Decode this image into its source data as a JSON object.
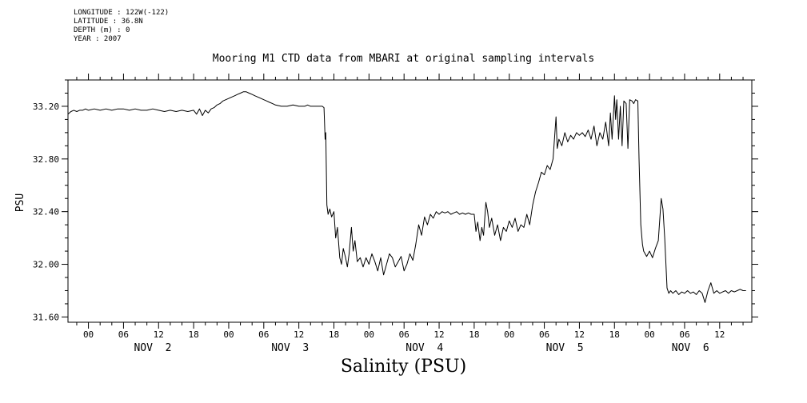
{
  "header": {
    "meta_lines": [
      "LONGITUDE : 122W(-122)",
      "LATITUDE : 36.8N",
      "DEPTH (m) : 0",
      "YEAR : 2007"
    ],
    "title": "Mooring M1 CTD data from MBARI at original sampling intervals"
  },
  "axes": {
    "y_label": "PSU",
    "x_label": "Salinity (PSU)"
  },
  "chart_data": {
    "type": "line",
    "title": "Mooring M1 CTD data from MBARI at original sampling intervals",
    "xlabel": "Salinity (PSU)",
    "ylabel": "PSU",
    "x_unit": "hours since 2007-11-02 00:00",
    "xlim": [
      -3.5,
      113.5
    ],
    "ylim": [
      31.56,
      33.4
    ],
    "y_major_ticks": [
      31.6,
      32.0,
      32.4,
      32.8,
      33.2
    ],
    "y_minor_step": 0.1,
    "x_major_step": 6,
    "x_minor_step": 2,
    "x_hour_label_cycle": [
      "00",
      "06",
      "12",
      "18"
    ],
    "day_labels": [
      {
        "label": "NOV  2",
        "t": 11
      },
      {
        "label": "NOV  3",
        "t": 34.5
      },
      {
        "label": "NOV  4",
        "t": 57.5
      },
      {
        "label": "NOV  5",
        "t": 81.5
      },
      {
        "label": "NOV  6",
        "t": 103
      }
    ],
    "grid": false,
    "legend": false,
    "line_color": "#000000",
    "background": "#ffffff",
    "series": [
      {
        "name": "Salinity (PSU)",
        "points": [
          [
            -3.5,
            33.14
          ],
          [
            -3,
            33.16
          ],
          [
            -2.5,
            33.17
          ],
          [
            -2,
            33.16
          ],
          [
            -1.5,
            33.17
          ],
          [
            -1,
            33.17
          ],
          [
            -0.5,
            33.18
          ],
          [
            0,
            33.17
          ],
          [
            1,
            33.18
          ],
          [
            2,
            33.17
          ],
          [
            3,
            33.18
          ],
          [
            4,
            33.17
          ],
          [
            5,
            33.18
          ],
          [
            6,
            33.18
          ],
          [
            7,
            33.17
          ],
          [
            8,
            33.18
          ],
          [
            9,
            33.17
          ],
          [
            10,
            33.17
          ],
          [
            11,
            33.18
          ],
          [
            12,
            33.17
          ],
          [
            13,
            33.16
          ],
          [
            14,
            33.17
          ],
          [
            15,
            33.16
          ],
          [
            16,
            33.17
          ],
          [
            17,
            33.16
          ],
          [
            18,
            33.17
          ],
          [
            18.5,
            33.14
          ],
          [
            19,
            33.18
          ],
          [
            19.5,
            33.13
          ],
          [
            20,
            33.17
          ],
          [
            20.5,
            33.15
          ],
          [
            21,
            33.18
          ],
          [
            21.5,
            33.19
          ],
          [
            22,
            33.21
          ],
          [
            22.5,
            33.22
          ],
          [
            23,
            33.24
          ],
          [
            23.5,
            33.25
          ],
          [
            24,
            33.26
          ],
          [
            24.5,
            33.27
          ],
          [
            25,
            33.28
          ],
          [
            25.5,
            33.29
          ],
          [
            26,
            33.3
          ],
          [
            26.5,
            33.31
          ],
          [
            27,
            33.31
          ],
          [
            27.5,
            33.3
          ],
          [
            28,
            33.29
          ],
          [
            28.5,
            33.28
          ],
          [
            29,
            33.27
          ],
          [
            29.5,
            33.26
          ],
          [
            30,
            33.25
          ],
          [
            30.5,
            33.24
          ],
          [
            31,
            33.23
          ],
          [
            31.5,
            33.22
          ],
          [
            32,
            33.21
          ],
          [
            33,
            33.2
          ],
          [
            34,
            33.2
          ],
          [
            35,
            33.21
          ],
          [
            36,
            33.2
          ],
          [
            37,
            33.2
          ],
          [
            37.5,
            33.21
          ],
          [
            38,
            33.2
          ],
          [
            39,
            33.2
          ],
          [
            40,
            33.2
          ],
          [
            40.3,
            33.19
          ],
          [
            40.5,
            32.95
          ],
          [
            40.6,
            33.0
          ],
          [
            40.8,
            32.45
          ],
          [
            41,
            32.38
          ],
          [
            41.3,
            32.42
          ],
          [
            41.6,
            32.36
          ],
          [
            42,
            32.4
          ],
          [
            42.3,
            32.2
          ],
          [
            42.6,
            32.28
          ],
          [
            43,
            32.05
          ],
          [
            43.3,
            32.0
          ],
          [
            43.6,
            32.12
          ],
          [
            44,
            32.05
          ],
          [
            44.3,
            31.98
          ],
          [
            44.6,
            32.08
          ],
          [
            45,
            32.28
          ],
          [
            45.3,
            32.1
          ],
          [
            45.6,
            32.18
          ],
          [
            46,
            32.02
          ],
          [
            46.5,
            32.05
          ],
          [
            47,
            31.98
          ],
          [
            47.5,
            32.05
          ],
          [
            48,
            32.0
          ],
          [
            48.5,
            32.08
          ],
          [
            49,
            32.02
          ],
          [
            49.5,
            31.95
          ],
          [
            50,
            32.05
          ],
          [
            50.5,
            31.92
          ],
          [
            51,
            32.0
          ],
          [
            51.5,
            32.08
          ],
          [
            52,
            32.05
          ],
          [
            52.5,
            31.98
          ],
          [
            53,
            32.02
          ],
          [
            53.5,
            32.06
          ],
          [
            54,
            31.95
          ],
          [
            54.5,
            32.0
          ],
          [
            55,
            32.08
          ],
          [
            55.5,
            32.03
          ],
          [
            56,
            32.15
          ],
          [
            56.5,
            32.3
          ],
          [
            57,
            32.22
          ],
          [
            57.5,
            32.36
          ],
          [
            58,
            32.3
          ],
          [
            58.5,
            32.38
          ],
          [
            59,
            32.35
          ],
          [
            59.5,
            32.4
          ],
          [
            60,
            32.38
          ],
          [
            60.5,
            32.4
          ],
          [
            61,
            32.39
          ],
          [
            61.5,
            32.4
          ],
          [
            62,
            32.38
          ],
          [
            62.5,
            32.39
          ],
          [
            63,
            32.4
          ],
          [
            63.5,
            32.38
          ],
          [
            64,
            32.39
          ],
          [
            64.5,
            32.38
          ],
          [
            65,
            32.39
          ],
          [
            65.5,
            32.38
          ],
          [
            66,
            32.38
          ],
          [
            66.3,
            32.25
          ],
          [
            66.6,
            32.32
          ],
          [
            67,
            32.18
          ],
          [
            67.3,
            32.28
          ],
          [
            67.6,
            32.22
          ],
          [
            68,
            32.47
          ],
          [
            68.3,
            32.4
          ],
          [
            68.6,
            32.28
          ],
          [
            69,
            32.35
          ],
          [
            69.5,
            32.22
          ],
          [
            70,
            32.3
          ],
          [
            70.5,
            32.18
          ],
          [
            71,
            32.28
          ],
          [
            71.5,
            32.25
          ],
          [
            72,
            32.33
          ],
          [
            72.5,
            32.28
          ],
          [
            73,
            32.35
          ],
          [
            73.5,
            32.25
          ],
          [
            74,
            32.3
          ],
          [
            74.5,
            32.28
          ],
          [
            75,
            32.38
          ],
          [
            75.5,
            32.3
          ],
          [
            76,
            32.45
          ],
          [
            76.5,
            32.55
          ],
          [
            77,
            32.62
          ],
          [
            77.5,
            32.7
          ],
          [
            78,
            32.68
          ],
          [
            78.5,
            32.75
          ],
          [
            79,
            32.72
          ],
          [
            79.5,
            32.8
          ],
          [
            80,
            33.12
          ],
          [
            80.2,
            32.88
          ],
          [
            80.5,
            32.95
          ],
          [
            81,
            32.9
          ],
          [
            81.5,
            33.0
          ],
          [
            82,
            32.93
          ],
          [
            82.5,
            32.98
          ],
          [
            83,
            32.95
          ],
          [
            83.5,
            33.0
          ],
          [
            84,
            32.98
          ],
          [
            84.5,
            33.0
          ],
          [
            85,
            32.97
          ],
          [
            85.5,
            33.02
          ],
          [
            86,
            32.95
          ],
          [
            86.5,
            33.05
          ],
          [
            87,
            32.9
          ],
          [
            87.5,
            33.0
          ],
          [
            88,
            32.95
          ],
          [
            88.5,
            33.08
          ],
          [
            89,
            32.9
          ],
          [
            89.3,
            33.15
          ],
          [
            89.6,
            32.95
          ],
          [
            90,
            33.28
          ],
          [
            90.2,
            33.1
          ],
          [
            90.4,
            33.25
          ],
          [
            90.7,
            32.95
          ],
          [
            91,
            33.2
          ],
          [
            91.3,
            32.9
          ],
          [
            91.6,
            33.24
          ],
          [
            92,
            33.22
          ],
          [
            92.3,
            32.88
          ],
          [
            92.6,
            33.25
          ],
          [
            93,
            33.24
          ],
          [
            93.3,
            33.22
          ],
          [
            93.6,
            33.25
          ],
          [
            94,
            33.24
          ],
          [
            94.2,
            32.8
          ],
          [
            94.5,
            32.3
          ],
          [
            94.8,
            32.15
          ],
          [
            95,
            32.1
          ],
          [
            95.5,
            32.06
          ],
          [
            96,
            32.1
          ],
          [
            96.5,
            32.05
          ],
          [
            97,
            32.12
          ],
          [
            97.5,
            32.18
          ],
          [
            98,
            32.5
          ],
          [
            98.3,
            32.42
          ],
          [
            98.6,
            32.2
          ],
          [
            99,
            31.82
          ],
          [
            99.3,
            31.78
          ],
          [
            99.6,
            31.8
          ],
          [
            100,
            31.78
          ],
          [
            100.5,
            31.8
          ],
          [
            101,
            31.77
          ],
          [
            101.5,
            31.79
          ],
          [
            102,
            31.78
          ],
          [
            102.5,
            31.8
          ],
          [
            103,
            31.78
          ],
          [
            103.5,
            31.79
          ],
          [
            104,
            31.77
          ],
          [
            104.5,
            31.8
          ],
          [
            105,
            31.78
          ],
          [
            105.5,
            31.71
          ],
          [
            106,
            31.8
          ],
          [
            106.5,
            31.86
          ],
          [
            107,
            31.78
          ],
          [
            107.5,
            31.8
          ],
          [
            108,
            31.78
          ],
          [
            108.5,
            31.79
          ],
          [
            109,
            31.8
          ],
          [
            109.5,
            31.78
          ],
          [
            110,
            31.8
          ],
          [
            110.5,
            31.79
          ],
          [
            111,
            31.8
          ],
          [
            111.5,
            31.81
          ],
          [
            112,
            31.8
          ],
          [
            112.5,
            31.8
          ]
        ]
      }
    ]
  }
}
